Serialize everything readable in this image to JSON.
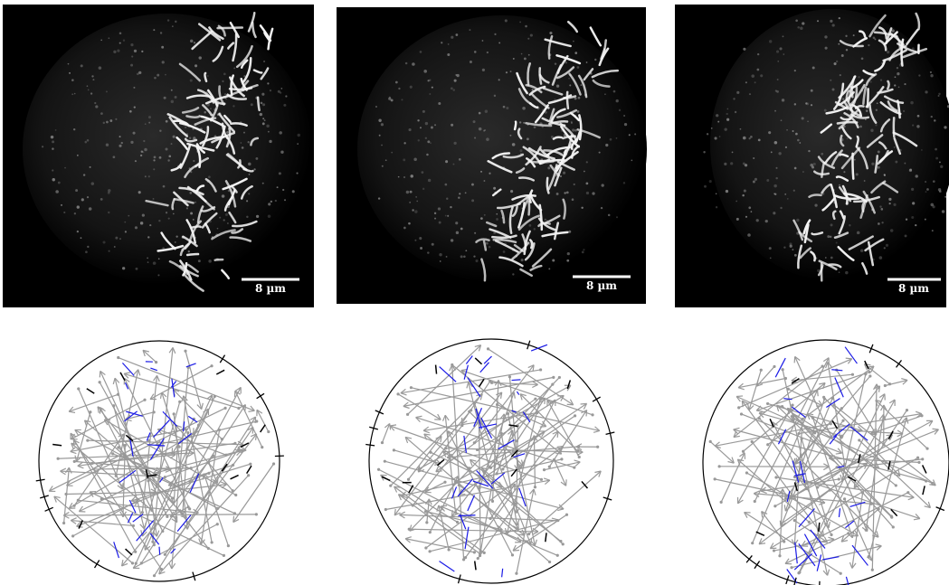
{
  "panels": [
    {
      "scale_bar": "8 µm"
    },
    {
      "scale_bar": "8 µm"
    },
    {
      "scale_bar": "8 µm"
    }
  ]
}
